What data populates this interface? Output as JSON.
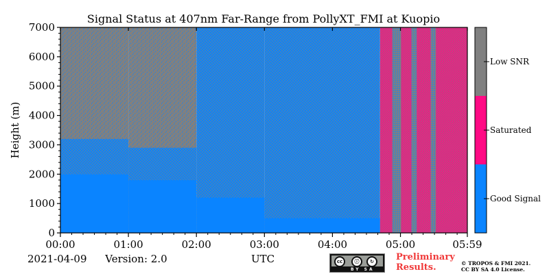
{
  "chart_data": {
    "type": "heatmap",
    "title": "Signal Status at 407nm Far-Range from PollyXT_FMI at Kuopio",
    "xlabel": "",
    "ylabel": "Height (m)",
    "x_tick_labels": [
      "00:00",
      "01:00",
      "02:00",
      "03:00",
      "04:00",
      "05:00",
      "05:59"
    ],
    "x_tick_minutes": [
      0,
      60,
      120,
      180,
      240,
      300,
      359
    ],
    "xlim_minutes": [
      0,
      359
    ],
    "y_ticks": [
      0,
      1000,
      2000,
      3000,
      4000,
      5000,
      6000,
      7000
    ],
    "ylim": [
      0,
      7000
    ],
    "categories": [
      "Good Signal",
      "Saturated",
      "Low SNR"
    ],
    "category_colors": {
      "Good Signal": "#0a84ff",
      "Saturated": "#ff0a84",
      "Low SNR": "#808080"
    },
    "segments": [
      {
        "x_start_min": 0,
        "x_end_min": 60,
        "good_signal_below_m": 2000,
        "mixed_up_to_m": 3200,
        "status_above": "Low SNR"
      },
      {
        "x_start_min": 60,
        "x_end_min": 120,
        "good_signal_below_m": 1800,
        "mixed_up_to_m": 2900,
        "status_above": "Low SNR"
      },
      {
        "x_start_min": 120,
        "x_end_min": 180,
        "good_signal_below_m": 1200,
        "mixed_up_to_m": 7000,
        "status_above": "Good Signal / Low SNR mix"
      },
      {
        "x_start_min": 180,
        "x_end_min": 282,
        "good_signal_below_m": 500,
        "mixed_up_to_m": 7000,
        "status_above": "Good Signal / Low SNR mix"
      },
      {
        "x_start_min": 282,
        "x_end_min": 359,
        "good_signal_below_m": 0,
        "mixed_up_to_m": 7000,
        "status_above": "Saturated / Low SNR mix with Good Signal stripes"
      }
    ]
  },
  "colorbar": {
    "labels": [
      "Low SNR",
      "Saturated",
      "Good Signal"
    ],
    "colors": [
      "#808080",
      "#ff0a84",
      "#0a84ff"
    ]
  },
  "footer": {
    "date": "2021-04-09",
    "version": "Version: 2.0",
    "utc": "UTC",
    "prelim_line1": "Preliminary",
    "prelim_line2": "Results.",
    "copyright_line1": "© TROPOS & FMI 2021.",
    "copyright_line2": "CC BY SA 4.0 License.",
    "cc_badge_text": "BY   SA",
    "cc_icons": [
      "cc",
      "by",
      "sa"
    ]
  },
  "colors": {
    "accent_prelim": "#f03a3a"
  }
}
